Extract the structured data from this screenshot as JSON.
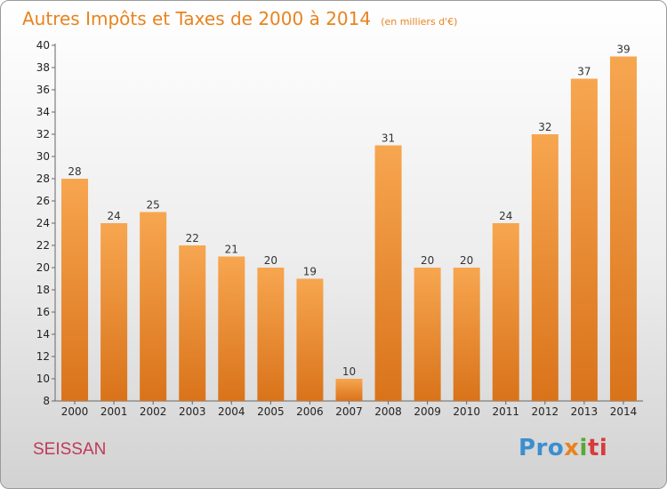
{
  "title": "Autres Impôts et Taxes de 2000 à 2014",
  "unit": "(en milliers d'€)",
  "commune": "SEISSAN",
  "logo": {
    "p1": "Pro",
    "p2": "x",
    "p3": "i",
    "p4": "ti"
  },
  "colors": {
    "bar": "#f08a2a",
    "bar_light": "#f7a650",
    "bar_dark": "#d9731a",
    "title": "#e8831f",
    "commune": "#c0395a"
  },
  "chart_data": {
    "type": "bar",
    "title": "Autres Impôts et Taxes de 2000 à 2014",
    "subtitle": "(en milliers d'€)",
    "categories": [
      "2000",
      "2001",
      "2002",
      "2003",
      "2004",
      "2005",
      "2006",
      "2007",
      "2008",
      "2009",
      "2010",
      "2011",
      "2012",
      "2013",
      "2014"
    ],
    "values": [
      28,
      24,
      25,
      22,
      21,
      20,
      19,
      10,
      31,
      20,
      20,
      24,
      32,
      37,
      39
    ],
    "ylim": [
      8,
      40
    ],
    "yticks": [
      8,
      10,
      12,
      14,
      16,
      18,
      20,
      22,
      24,
      26,
      28,
      30,
      32,
      34,
      36,
      38,
      40
    ],
    "grid": false,
    "legend": "none"
  }
}
